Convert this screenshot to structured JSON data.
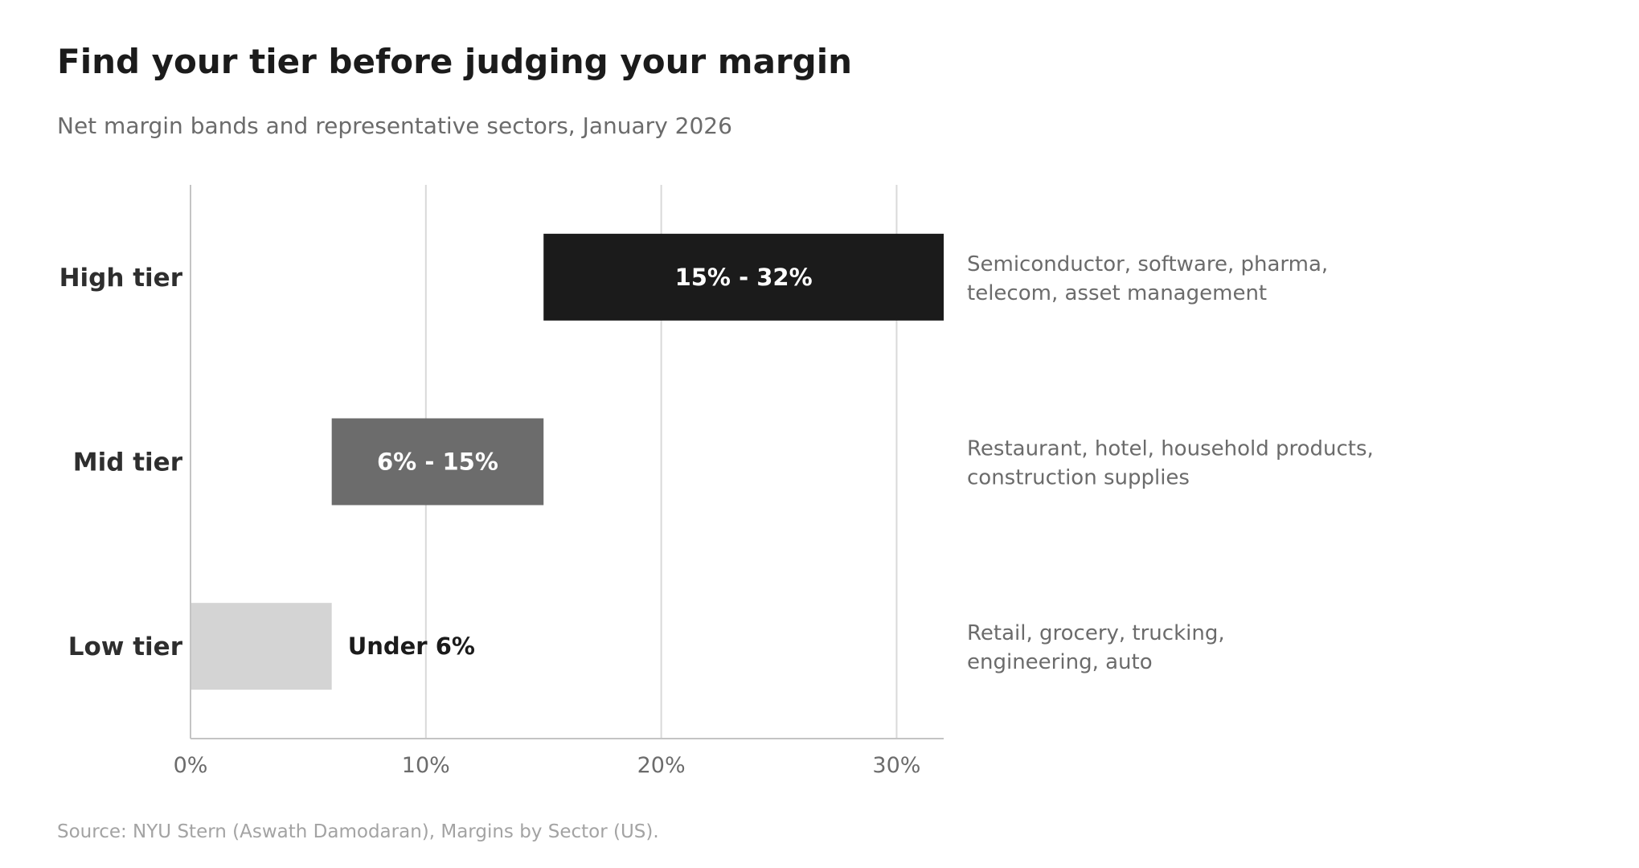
{
  "chart_data": {
    "type": "bar",
    "orientation": "horizontal",
    "title": "Find your tier before judging your margin",
    "subtitle": "Net margin bands and representative sectors, January 2026",
    "source": "Source: NYU Stern (Aswath Damodaran), Margins by Sector (US).",
    "xlim": [
      0,
      32
    ],
    "x_ticks": [
      {
        "value": 0,
        "label": "0%"
      },
      {
        "value": 10,
        "label": "10%"
      },
      {
        "value": 20,
        "label": "20%"
      },
      {
        "value": 30,
        "label": "30%"
      }
    ],
    "grid": "vertical",
    "tiers": [
      {
        "name": "High tier",
        "start": 15,
        "end": 32,
        "label": "15% - 32%",
        "color": "#1b1b1b",
        "label_color": "#ffffff",
        "label_inside": true,
        "sectors": [
          "Semiconductor, software, pharma,",
          "telecom, asset management"
        ]
      },
      {
        "name": "Mid tier",
        "start": 6,
        "end": 15,
        "label": "6% - 15%",
        "color": "#6c6c6c",
        "label_color": "#ffffff",
        "label_inside": true,
        "sectors": [
          "Restaurant, hotel, household products,",
          "construction supplies"
        ]
      },
      {
        "name": "Low tier",
        "start": 0,
        "end": 6,
        "label": "Under 6%",
        "color": "#d4d4d4",
        "label_color": "#1b1b1b",
        "label_inside": false,
        "sectors": [
          "Retail, grocery, trucking,",
          "engineering, auto"
        ]
      }
    ]
  }
}
